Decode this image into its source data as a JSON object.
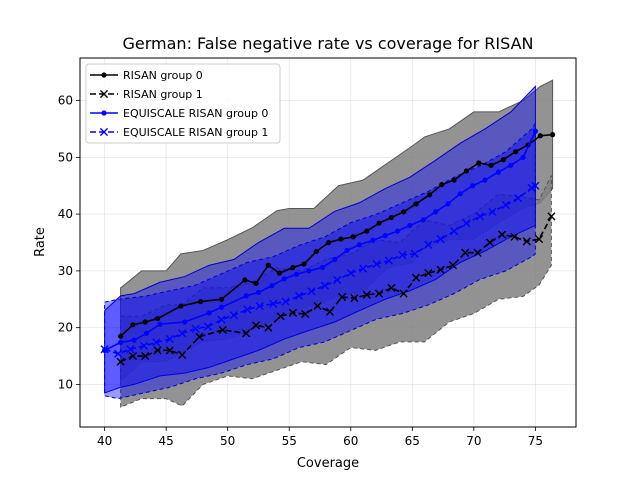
{
  "chart_data": {
    "type": "line",
    "title": "German: False negative rate vs coverage for RISAN",
    "xlabel": "Coverage",
    "ylabel": "Rate",
    "xlim": [
      38,
      78.3
    ],
    "ylim": [
      2.5,
      67.5
    ],
    "xticks": [
      40,
      45,
      50,
      55,
      60,
      65,
      70,
      75
    ],
    "yticks": [
      10,
      20,
      30,
      40,
      50,
      60
    ],
    "grid": true,
    "legend_position": "top-left",
    "colors": {
      "group0": "#000000",
      "group1": "#000000",
      "equi0": "#0000ff",
      "equi1": "#0000ff",
      "gray_band": "#808080",
      "blue_band": "#0000ff"
    },
    "series": [
      {
        "name": "RISAN group 0",
        "color": "#000000",
        "linestyle": "solid",
        "marker": "dot",
        "x": [
          41.3,
          42.3,
          43.3,
          44.3,
          46.2,
          47.8,
          49.5,
          51.4,
          52.3,
          53.3,
          54.2,
          55.3,
          56.2,
          57.2,
          58.2,
          59.2,
          60.2,
          61.3,
          62.3,
          63.3,
          64.3,
          65.3,
          66.4,
          67.4,
          68.4,
          69.4,
          70.4,
          71.4,
          72.4,
          73.4,
          74.4,
          75.4,
          76.4
        ],
        "y": [
          18.5,
          20.5,
          21.0,
          21.6,
          23.8,
          24.6,
          25.0,
          28.4,
          27.8,
          31.0,
          29.6,
          30.6,
          31.2,
          33.4,
          35.0,
          35.6,
          36.0,
          37.0,
          38.4,
          39.4,
          40.4,
          41.8,
          43.4,
          45.2,
          46.0,
          47.6,
          49.0,
          48.6,
          49.6,
          51.0,
          52.2,
          53.8,
          54.0
        ]
      },
      {
        "name": "RISAN group 1",
        "color": "#000000",
        "linestyle": "dashed",
        "marker": "x",
        "x": [
          41.3,
          42.3,
          43.3,
          44.3,
          45.3,
          46.3,
          47.7,
          49.6,
          51.5,
          52.3,
          53.3,
          54.3,
          55.3,
          56.3,
          57.3,
          58.3,
          59.3,
          60.3,
          61.3,
          62.3,
          63.3,
          64.3,
          65.3,
          66.3,
          67.3,
          68.3,
          69.3,
          70.3,
          71.3,
          72.3,
          73.3,
          74.3,
          75.3,
          76.3
        ],
        "y": [
          14.0,
          15.0,
          15.0,
          16.0,
          16.0,
          15.2,
          18.4,
          19.6,
          19.0,
          20.4,
          20.0,
          22.0,
          22.6,
          22.4,
          23.8,
          22.8,
          25.4,
          25.2,
          25.8,
          26.0,
          27.0,
          26.0,
          28.8,
          29.6,
          30.2,
          31.0,
          33.2,
          33.2,
          35.0,
          36.4,
          36.0,
          35.2,
          35.6,
          39.6
        ]
      },
      {
        "name": "EQUISCALE RISAN group 0",
        "color": "#0000ff",
        "linestyle": "solid",
        "marker": "dot",
        "x": [
          40.0,
          41.3,
          42.4,
          43.4,
          44.5,
          46.5,
          48.5,
          49.5,
          51.5,
          52.5,
          53.6,
          54.6,
          55.6,
          56.6,
          57.7,
          58.7,
          59.7,
          60.7,
          61.8,
          62.8,
          63.8,
          64.8,
          65.9,
          66.9,
          67.9,
          68.9,
          69.9,
          70.9,
          72.0,
          73.0,
          74.0,
          75.0
        ],
        "y": [
          16.0,
          17.4,
          17.8,
          19.0,
          20.6,
          21.0,
          22.6,
          23.6,
          25.6,
          26.2,
          27.4,
          28.6,
          29.4,
          30.0,
          30.6,
          32.0,
          33.6,
          34.6,
          35.4,
          36.2,
          37.0,
          38.0,
          39.0,
          40.4,
          41.8,
          43.6,
          45.0,
          46.0,
          47.4,
          48.6,
          50.0,
          54.6
        ]
      },
      {
        "name": "EQUISCALE RISAN group 1",
        "color": "#0000ff",
        "linestyle": "dashed",
        "marker": "x",
        "x": [
          40.0,
          41.1,
          42.1,
          43.2,
          44.2,
          45.3,
          46.3,
          47.4,
          48.4,
          49.5,
          50.5,
          51.6,
          52.6,
          53.7,
          54.7,
          55.8,
          56.8,
          57.9,
          58.9,
          60.0,
          61.0,
          62.1,
          63.1,
          64.2,
          65.2,
          66.3,
          67.3,
          68.4,
          69.4,
          70.5,
          71.5,
          72.6,
          73.6,
          74.7,
          75.0
        ],
        "y": [
          16.2,
          15.4,
          16.2,
          16.8,
          17.4,
          18.0,
          19.0,
          19.8,
          20.2,
          21.4,
          22.2,
          23.2,
          23.8,
          24.2,
          24.6,
          25.6,
          26.4,
          27.4,
          28.4,
          29.6,
          30.4,
          31.2,
          31.8,
          32.8,
          33.0,
          34.6,
          35.6,
          37.0,
          38.4,
          39.6,
          40.4,
          41.6,
          42.8,
          44.6,
          45.0
        ]
      }
    ],
    "bands": [
      {
        "of": "RISAN group 0",
        "color": "#808080",
        "opacity": 0.85,
        "edge": "solid",
        "x": [
          41.3,
          43.0,
          45.0,
          46.2,
          48.0,
          50.0,
          52.0,
          54.0,
          55.0,
          57.0,
          59.0,
          61.0,
          63.0,
          65.0,
          66.0,
          68.0,
          70.0,
          72.0,
          74.0,
          75.4,
          76.4
        ],
        "upper": [
          27.0,
          30.0,
          30.0,
          33.0,
          33.6,
          35.5,
          37.6,
          40.6,
          41.0,
          41.0,
          45.0,
          46.0,
          49.0,
          52.0,
          53.6,
          55.0,
          58.0,
          58.0,
          60.0,
          62.5,
          63.6
        ],
        "lower": [
          10.5,
          14.0,
          14.0,
          15.5,
          17.6,
          18.0,
          19.8,
          21.5,
          22.5,
          24.0,
          25.5,
          26.5,
          30.5,
          31.5,
          34.0,
          35.5,
          35.6,
          38.5,
          41.0,
          42.0,
          44.5
        ]
      },
      {
        "of": "RISAN group 1",
        "color": "#808080",
        "opacity": 0.85,
        "edge": "dashed",
        "x": [
          41.3,
          43.0,
          45.0,
          46.3,
          48.0,
          50.0,
          52.0,
          54.0,
          56.0,
          58.0,
          60.0,
          62.0,
          64.0,
          66.0,
          68.0,
          70.0,
          72.0,
          74.0,
          75.3,
          76.3
        ],
        "upper": [
          22.0,
          22.0,
          24.0,
          24.0,
          27.0,
          27.0,
          28.0,
          30.5,
          30.0,
          32.0,
          33.0,
          35.5,
          35.0,
          39.0,
          38.0,
          40.0,
          43.5,
          43.0,
          42.5,
          46.8
        ],
        "lower": [
          6.0,
          7.5,
          7.5,
          6.2,
          10.0,
          11.5,
          11.0,
          12.5,
          14.0,
          13.5,
          16.5,
          16.0,
          17.5,
          17.5,
          21.0,
          22.5,
          25.0,
          25.5,
          27.5,
          31.0
        ]
      },
      {
        "of": "EQUISCALE RISAN group 0",
        "color": "#0000ff",
        "opacity": 0.4,
        "edge": "solid",
        "x": [
          40.0,
          41.3,
          42.4,
          44.5,
          46.5,
          48.5,
          50.5,
          52.5,
          54.6,
          56.6,
          58.7,
          60.7,
          62.8,
          64.8,
          66.9,
          68.9,
          70.9,
          73.0,
          75.0
        ],
        "upper": [
          23.0,
          25.6,
          26.0,
          28.0,
          29.0,
          31.0,
          32.0,
          35.0,
          37.5,
          37.5,
          40.5,
          42.0,
          44.5,
          46.5,
          49.5,
          52.5,
          55.0,
          58.0,
          62.5
        ],
        "lower": [
          8.5,
          9.5,
          10.0,
          11.5,
          12.0,
          13.0,
          14.5,
          16.0,
          18.0,
          19.5,
          21.0,
          23.0,
          25.0,
          26.5,
          28.5,
          31.5,
          33.5,
          36.0,
          38.0
        ]
      },
      {
        "of": "EQUISCALE RISAN group 1",
        "color": "#0000ff",
        "opacity": 0.4,
        "edge": "dashed",
        "x": [
          40.0,
          41.1,
          43.2,
          45.3,
          47.4,
          49.5,
          51.6,
          53.7,
          55.8,
          57.9,
          60.0,
          62.1,
          64.2,
          66.3,
          68.4,
          70.5,
          72.6,
          74.7,
          75.0
        ],
        "upper": [
          24.5,
          25.0,
          25.5,
          26.5,
          27.5,
          29.5,
          31.5,
          32.5,
          34.5,
          36.0,
          38.5,
          40.0,
          42.0,
          44.0,
          46.5,
          48.5,
          51.0,
          55.0,
          56.0
        ],
        "lower": [
          8.0,
          7.5,
          8.5,
          9.5,
          11.0,
          12.0,
          13.5,
          14.5,
          16.5,
          17.5,
          19.5,
          21.5,
          22.5,
          24.0,
          26.0,
          28.5,
          30.0,
          32.5,
          33.0
        ]
      }
    ]
  }
}
